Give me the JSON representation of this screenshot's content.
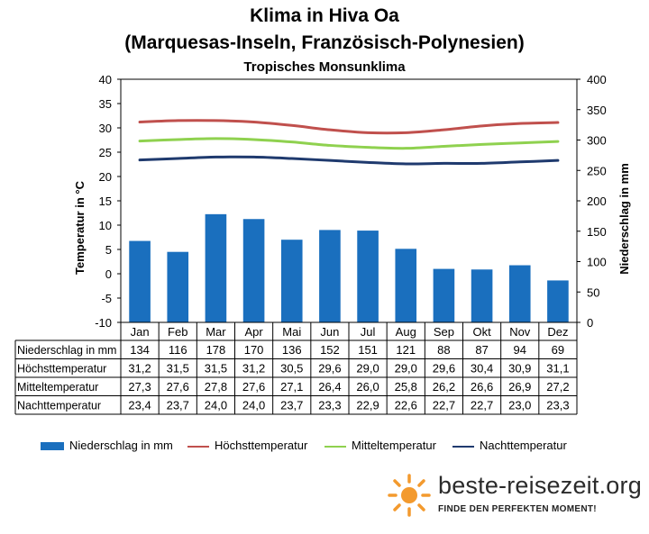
{
  "header": {
    "title": "Klima in Hiva Oa",
    "subtitle": "(Marquesas-Inseln, Französisch-Polynesien)",
    "climate": "Tropisches Monsunklima"
  },
  "chart_data": {
    "type": "bar",
    "categories": [
      "Jan",
      "Feb",
      "Mar",
      "Apr",
      "Mai",
      "Jun",
      "Jul",
      "Aug",
      "Sep",
      "Okt",
      "Nov",
      "Dez"
    ],
    "ylabel_left": "Temperatur in °C",
    "ylabel_right": "Niederschlag in mm",
    "ylim_left": [
      -10,
      40
    ],
    "ylim_right": [
      0,
      400
    ],
    "yticks_left": [
      40,
      35,
      30,
      25,
      20,
      15,
      10,
      5,
      0,
      -5,
      -10
    ],
    "yticks_right": [
      400,
      350,
      300,
      250,
      200,
      150,
      100,
      50,
      0
    ],
    "grid": false,
    "legend_position": "bottom",
    "series": [
      {
        "name": "Niederschlag in mm",
        "kind": "bar",
        "axis": "right",
        "color": "#1a6fbe",
        "values": [
          134,
          116,
          178,
          170,
          136,
          152,
          151,
          121,
          88,
          87,
          94,
          69
        ]
      },
      {
        "name": "Höchsttemperatur",
        "kind": "line",
        "axis": "left",
        "color": "#c0504d",
        "values": [
          31.2,
          31.5,
          31.5,
          31.2,
          30.5,
          29.6,
          29.0,
          29.0,
          29.6,
          30.4,
          30.9,
          31.1
        ]
      },
      {
        "name": "Mitteltemperatur",
        "kind": "line",
        "axis": "left",
        "color": "#8fd14f",
        "values": [
          27.3,
          27.6,
          27.8,
          27.6,
          27.1,
          26.4,
          26.0,
          25.8,
          26.2,
          26.6,
          26.9,
          27.2
        ]
      },
      {
        "name": "Nachttemperatur",
        "kind": "line",
        "axis": "left",
        "color": "#1f3a6e",
        "values": [
          23.4,
          23.7,
          24.0,
          24.0,
          23.7,
          23.3,
          22.9,
          22.6,
          22.7,
          22.7,
          23.0,
          23.3
        ]
      }
    ],
    "table": {
      "rows": [
        {
          "label": "Niederschlag in mm",
          "values": [
            "134",
            "116",
            "178",
            "170",
            "136",
            "152",
            "151",
            "121",
            "88",
            "87",
            "94",
            "69"
          ]
        },
        {
          "label": "Höchsttemperatur",
          "values": [
            "31,2",
            "31,5",
            "31,5",
            "31,2",
            "30,5",
            "29,6",
            "29,0",
            "29,0",
            "29,6",
            "30,4",
            "30,9",
            "31,1"
          ]
        },
        {
          "label": "Mitteltemperatur",
          "values": [
            "27,3",
            "27,6",
            "27,8",
            "27,6",
            "27,1",
            "26,4",
            "26,0",
            "25,8",
            "26,2",
            "26,6",
            "26,9",
            "27,2"
          ]
        },
        {
          "label": "Nachttemperatur",
          "values": [
            "23,4",
            "23,7",
            "24,0",
            "24,0",
            "23,7",
            "23,3",
            "22,9",
            "22,6",
            "22,7",
            "22,7",
            "23,0",
            "23,3"
          ]
        }
      ]
    }
  },
  "legend": {
    "items": [
      "Niederschlag in mm",
      "Höchsttemperatur",
      "Mitteltemperatur",
      "Nachttemperatur"
    ]
  },
  "logo": {
    "name": "beste-reisezeit.org",
    "tagline": "FINDE DEN PERFEKTEN MOMENT!",
    "icon": "sun-icon",
    "color": "#f39a2e"
  }
}
